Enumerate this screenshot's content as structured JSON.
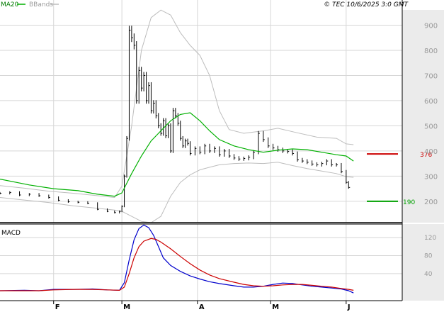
{
  "header": {
    "legend_ma": "MA20",
    "legend_bbands": "BBands",
    "credit": "© TEC 10/6/2025 3:0 GMT"
  },
  "colors": {
    "price": "#000000",
    "ma20": "#00b000",
    "bbands": "#bdbdbd",
    "macd": "#0000cc",
    "signal": "#cc0000",
    "resistance": "#cc0000",
    "support": "#00a000",
    "grid": "#d6d6d6",
    "axis_area": "#ebebeb"
  },
  "chart_data": [
    {
      "type": "line",
      "panel": "price",
      "y_ticks": [
        200,
        300,
        400,
        500,
        600,
        700,
        800,
        900
      ],
      "ylim": [
        115,
        1000
      ],
      "x_ticks": [
        {
          "label": "F",
          "x": 22
        },
        {
          "label": "M",
          "x": 50
        },
        {
          "label": "A",
          "x": 81
        },
        {
          "label": "M",
          "x": 111
        },
        {
          "label": "J",
          "x": 142
        }
      ],
      "xlim": [
        0,
        165
      ],
      "grid": true,
      "levels": [
        {
          "name": "resistance",
          "value": 388,
          "label": "376",
          "color": "#cc0000"
        },
        {
          "name": "support",
          "value": 200,
          "label": "190",
          "color": "#00a000"
        }
      ],
      "series": [
        {
          "name": "MA20",
          "color": "#00b000",
          "points": [
            [
              0,
              288
            ],
            [
              12,
              265
            ],
            [
              22,
              250
            ],
            [
              32,
              242
            ],
            [
              40,
              228
            ],
            [
              47,
              220
            ],
            [
              50,
              233
            ],
            [
              54,
              310
            ],
            [
              58,
              380
            ],
            [
              62,
              440
            ],
            [
              66,
              480
            ],
            [
              70,
              520
            ],
            [
              74,
              545
            ],
            [
              78,
              552
            ],
            [
              82,
              520
            ],
            [
              86,
              480
            ],
            [
              90,
              445
            ],
            [
              96,
              420
            ],
            [
              102,
              405
            ],
            [
              108,
              395
            ],
            [
              114,
              403
            ],
            [
              120,
              408
            ],
            [
              126,
              405
            ],
            [
              132,
              395
            ],
            [
              138,
              385
            ],
            [
              142,
              380
            ],
            [
              145,
              360
            ]
          ]
        },
        {
          "name": "BBands upper",
          "color": "#bdbdbd",
          "points": [
            [
              0,
              262
            ],
            [
              10,
              252
            ],
            [
              20,
              240
            ],
            [
              30,
              232
            ],
            [
              40,
              222
            ],
            [
              47,
              215
            ],
            [
              50,
              260
            ],
            [
              54,
              500
            ],
            [
              58,
              800
            ],
            [
              62,
              930
            ],
            [
              66,
              960
            ],
            [
              70,
              940
            ],
            [
              74,
              870
            ],
            [
              78,
              820
            ],
            [
              82,
              780
            ],
            [
              86,
              700
            ],
            [
              90,
              560
            ],
            [
              94,
              485
            ],
            [
              100,
              470
            ],
            [
              108,
              480
            ],
            [
              114,
              490
            ],
            [
              122,
              472
            ],
            [
              130,
              455
            ],
            [
              138,
              450
            ],
            [
              142,
              428
            ],
            [
              145,
              425
            ]
          ]
        },
        {
          "name": "BBands lower",
          "color": "#bdbdbd",
          "points": [
            [
              0,
              215
            ],
            [
              10,
              205
            ],
            [
              20,
              195
            ],
            [
              30,
              182
            ],
            [
              40,
              172
            ],
            [
              47,
              165
            ],
            [
              50,
              160
            ],
            [
              54,
              140
            ],
            [
              58,
              120
            ],
            [
              62,
              115
            ],
            [
              66,
              140
            ],
            [
              70,
              220
            ],
            [
              74,
              275
            ],
            [
              78,
              305
            ],
            [
              82,
              325
            ],
            [
              86,
              335
            ],
            [
              90,
              345
            ],
            [
              96,
              350
            ],
            [
              102,
              352
            ],
            [
              108,
              350
            ],
            [
              114,
              355
            ],
            [
              120,
              342
            ],
            [
              126,
              330
            ],
            [
              132,
              320
            ],
            [
              138,
              310
            ],
            [
              142,
              298
            ],
            [
              145,
              295
            ]
          ]
        },
        {
          "name": "Price",
          "color": "#000000",
          "points": [
            [
              0,
              232
            ],
            [
              4,
              235
            ],
            [
              8,
              225
            ],
            [
              12,
              228
            ],
            [
              16,
              222
            ],
            [
              20,
              215
            ],
            [
              24,
              204
            ],
            [
              28,
              198
            ],
            [
              32,
              196
            ],
            [
              36,
              192
            ],
            [
              40,
              168
            ],
            [
              44,
              160
            ],
            [
              47,
              155
            ],
            [
              49,
              160
            ],
            [
              50,
              180
            ],
            [
              51,
              300
            ],
            [
              52,
              450
            ],
            [
              53,
              880
            ],
            [
              54,
              850
            ],
            [
              55,
              820
            ],
            [
              56,
              600
            ],
            [
              57,
              720
            ],
            [
              58,
              650
            ],
            [
              59,
              700
            ],
            [
              60,
              600
            ],
            [
              61,
              660
            ],
            [
              62,
              560
            ],
            [
              63,
              590
            ],
            [
              64,
              540
            ],
            [
              65,
              500
            ],
            [
              66,
              470
            ],
            [
              67,
              520
            ],
            [
              68,
              460
            ],
            [
              69,
              500
            ],
            [
              70,
              400
            ],
            [
              71,
              560
            ],
            [
              72,
              540
            ],
            [
              73,
              510
            ],
            [
              74,
              450
            ],
            [
              75,
              420
            ],
            [
              76,
              440
            ],
            [
              77,
              430
            ],
            [
              78,
              390
            ],
            [
              80,
              410
            ],
            [
              82,
              395
            ],
            [
              84,
              420
            ],
            [
              86,
              400
            ],
            [
              88,
              410
            ],
            [
              90,
              385
            ],
            [
              92,
              400
            ],
            [
              94,
              380
            ],
            [
              96,
              372
            ],
            [
              98,
              368
            ],
            [
              100,
              370
            ],
            [
              102,
              375
            ],
            [
              104,
              395
            ],
            [
              106,
              470
            ],
            [
              108,
              445
            ],
            [
              110,
              420
            ],
            [
              112,
              412
            ],
            [
              114,
              405
            ],
            [
              116,
              400
            ],
            [
              118,
              398
            ],
            [
              120,
              390
            ],
            [
              122,
              365
            ],
            [
              124,
              360
            ],
            [
              126,
              355
            ],
            [
              128,
              348
            ],
            [
              130,
              345
            ],
            [
              132,
              350
            ],
            [
              134,
              360
            ],
            [
              136,
              345
            ],
            [
              138,
              345
            ],
            [
              140,
              318
            ],
            [
              142,
              275
            ],
            [
              143,
              255
            ]
          ]
        }
      ]
    },
    {
      "type": "line",
      "panel": "macd",
      "title": "MACD",
      "y_ticks": [
        40,
        80,
        120
      ],
      "ylim": [
        -20,
        150
      ],
      "xlim": [
        0,
        165
      ],
      "grid": true,
      "series": [
        {
          "name": "MACD",
          "color": "#0000cc",
          "points": [
            [
              0,
              2
            ],
            [
              10,
              3
            ],
            [
              16,
              2
            ],
            [
              22,
              5
            ],
            [
              30,
              5
            ],
            [
              38,
              6
            ],
            [
              44,
              4
            ],
            [
              49,
              3
            ],
            [
              51,
              20
            ],
            [
              53,
              70
            ],
            [
              55,
              115
            ],
            [
              57,
              140
            ],
            [
              59,
              148
            ],
            [
              61,
              142
            ],
            [
              63,
              125
            ],
            [
              65,
              100
            ],
            [
              67,
              75
            ],
            [
              70,
              58
            ],
            [
              74,
              45
            ],
            [
              78,
              35
            ],
            [
              82,
              28
            ],
            [
              86,
              22
            ],
            [
              90,
              18
            ],
            [
              96,
              13
            ],
            [
              100,
              10
            ],
            [
              104,
              10
            ],
            [
              108,
              12
            ],
            [
              112,
              16
            ],
            [
              116,
              19
            ],
            [
              120,
              18
            ],
            [
              124,
              15
            ],
            [
              128,
              12
            ],
            [
              132,
              10
            ],
            [
              136,
              8
            ],
            [
              140,
              6
            ],
            [
              143,
              2
            ],
            [
              145,
              -3
            ]
          ]
        },
        {
          "name": "Signal",
          "color": "#cc0000",
          "points": [
            [
              0,
              2
            ],
            [
              10,
              2
            ],
            [
              16,
              2
            ],
            [
              22,
              4
            ],
            [
              30,
              5
            ],
            [
              38,
              5
            ],
            [
              44,
              4
            ],
            [
              49,
              3
            ],
            [
              51,
              10
            ],
            [
              53,
              40
            ],
            [
              55,
              75
            ],
            [
              57,
              100
            ],
            [
              59,
              112
            ],
            [
              62,
              118
            ],
            [
              64,
              116
            ],
            [
              66,
              110
            ],
            [
              70,
              95
            ],
            [
              74,
              78
            ],
            [
              78,
              62
            ],
            [
              82,
              48
            ],
            [
              86,
              37
            ],
            [
              90,
              29
            ],
            [
              96,
              21
            ],
            [
              100,
              16
            ],
            [
              104,
              13
            ],
            [
              108,
              12
            ],
            [
              112,
              13
            ],
            [
              116,
              15
            ],
            [
              120,
              16
            ],
            [
              124,
              16
            ],
            [
              128,
              14
            ],
            [
              132,
              12
            ],
            [
              136,
              10
            ],
            [
              140,
              7
            ],
            [
              143,
              5
            ],
            [
              145,
              3
            ]
          ]
        }
      ]
    }
  ]
}
